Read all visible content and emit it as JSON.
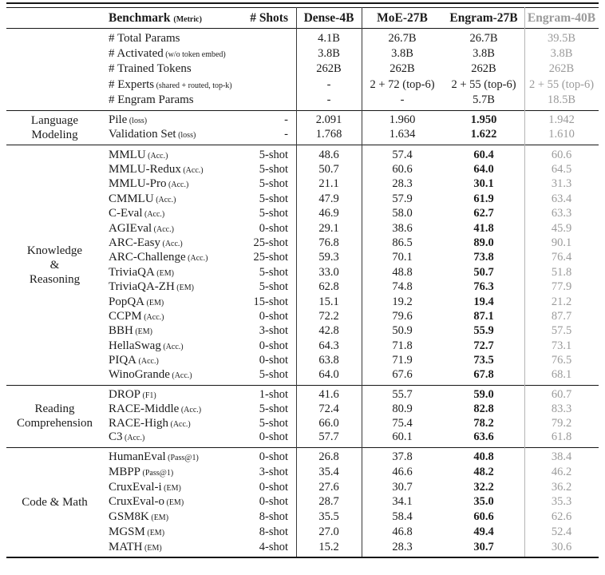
{
  "header": {
    "benchmark": "Benchmark",
    "benchmark_metric": "(Metric)",
    "shots": "# Shots",
    "models": [
      "Dense-4B",
      "MoE-27B",
      "Engram-27B",
      "Engram-40B"
    ]
  },
  "colors": {
    "muted_text": "#9a9a9a",
    "rule": "#161616",
    "light_vline": "#b5b5b5"
  },
  "sections": [
    {
      "group_lines": [],
      "rows": [
        {
          "name": "# Total Params",
          "metric": "",
          "shots": "",
          "values": [
            "4.1B",
            "26.7B",
            "26.7B",
            "39.5B"
          ],
          "bold_col": -1
        },
        {
          "name": "# Activated",
          "metric": "(w/o token embed)",
          "shots": "",
          "values": [
            "3.8B",
            "3.8B",
            "3.8B",
            "3.8B"
          ],
          "bold_col": -1
        },
        {
          "name": "# Trained Tokens",
          "metric": "",
          "shots": "",
          "values": [
            "262B",
            "262B",
            "262B",
            "262B"
          ],
          "bold_col": -1
        },
        {
          "name": "# Experts",
          "metric": "(shared + routed, top-k)",
          "shots": "",
          "values": [
            "-",
            "2 + 72 (top-6)",
            "2 + 55 (top-6)",
            "2 + 55 (top-6)"
          ],
          "bold_col": -1
        },
        {
          "name": "# Engram Params",
          "metric": "",
          "shots": "",
          "values": [
            "-",
            "-",
            "5.7B",
            "18.5B"
          ],
          "bold_col": -1
        }
      ]
    },
    {
      "group_lines": [
        "Language",
        "Modeling"
      ],
      "rows": [
        {
          "name": "Pile",
          "metric": "(loss)",
          "shots": "-",
          "values": [
            "2.091",
            "1.960",
            "1.950",
            "1.942"
          ],
          "bold_col": 2
        },
        {
          "name": "Validation Set",
          "metric": "(loss)",
          "shots": "-",
          "values": [
            "1.768",
            "1.634",
            "1.622",
            "1.610"
          ],
          "bold_col": 2
        }
      ]
    },
    {
      "group_lines": [
        "Knowledge",
        "&",
        "Reasoning"
      ],
      "rows": [
        {
          "name": "MMLU",
          "metric": "(Acc.)",
          "shots": "5-shot",
          "values": [
            "48.6",
            "57.4",
            "60.4",
            "60.6"
          ],
          "bold_col": 2
        },
        {
          "name": "MMLU-Redux",
          "metric": "(Acc.)",
          "shots": "5-shot",
          "values": [
            "50.7",
            "60.6",
            "64.0",
            "64.5"
          ],
          "bold_col": 2
        },
        {
          "name": "MMLU-Pro",
          "metric": "(Acc.)",
          "shots": "5-shot",
          "values": [
            "21.1",
            "28.3",
            "30.1",
            "31.3"
          ],
          "bold_col": 2
        },
        {
          "name": "CMMLU",
          "metric": "(Acc.)",
          "shots": "5-shot",
          "values": [
            "47.9",
            "57.9",
            "61.9",
            "63.4"
          ],
          "bold_col": 2
        },
        {
          "name": "C-Eval",
          "metric": "(Acc.)",
          "shots": "5-shot",
          "values": [
            "46.9",
            "58.0",
            "62.7",
            "63.3"
          ],
          "bold_col": 2
        },
        {
          "name": "AGIEval",
          "metric": "(Acc.)",
          "shots": "0-shot",
          "values": [
            "29.1",
            "38.6",
            "41.8",
            "45.9"
          ],
          "bold_col": 2
        },
        {
          "name": "ARC-Easy",
          "metric": "(Acc.)",
          "shots": "25-shot",
          "values": [
            "76.8",
            "86.5",
            "89.0",
            "90.1"
          ],
          "bold_col": 2
        },
        {
          "name": "ARC-Challenge",
          "metric": "(Acc.)",
          "shots": "25-shot",
          "values": [
            "59.3",
            "70.1",
            "73.8",
            "76.4"
          ],
          "bold_col": 2
        },
        {
          "name": "TriviaQA",
          "metric": "(EM)",
          "shots": "5-shot",
          "values": [
            "33.0",
            "48.8",
            "50.7",
            "51.8"
          ],
          "bold_col": 2
        },
        {
          "name": "TriviaQA-ZH",
          "metric": "(EM)",
          "shots": "5-shot",
          "values": [
            "62.8",
            "74.8",
            "76.3",
            "77.9"
          ],
          "bold_col": 2
        },
        {
          "name": "PopQA",
          "metric": "(EM)",
          "shots": "15-shot",
          "values": [
            "15.1",
            "19.2",
            "19.4",
            "21.2"
          ],
          "bold_col": 2
        },
        {
          "name": "CCPM",
          "metric": "(Acc.)",
          "shots": "0-shot",
          "values": [
            "72.2",
            "79.6",
            "87.1",
            "87.7"
          ],
          "bold_col": 2
        },
        {
          "name": "BBH",
          "metric": "(EM)",
          "shots": "3-shot",
          "values": [
            "42.8",
            "50.9",
            "55.9",
            "57.5"
          ],
          "bold_col": 2
        },
        {
          "name": "HellaSwag",
          "metric": "(Acc.)",
          "shots": "0-shot",
          "values": [
            "64.3",
            "71.8",
            "72.7",
            "73.1"
          ],
          "bold_col": 2
        },
        {
          "name": "PIQA",
          "metric": "(Acc.)",
          "shots": "0-shot",
          "values": [
            "63.8",
            "71.9",
            "73.5",
            "76.5"
          ],
          "bold_col": 2
        },
        {
          "name": "WinoGrande",
          "metric": "(Acc.)",
          "shots": "5-shot",
          "values": [
            "64.0",
            "67.6",
            "67.8",
            "68.1"
          ],
          "bold_col": 2
        }
      ]
    },
    {
      "group_lines": [
        "Reading",
        "Comprehension"
      ],
      "rows": [
        {
          "name": "DROP",
          "metric": "(F1)",
          "shots": "1-shot",
          "values": [
            "41.6",
            "55.7",
            "59.0",
            "60.7"
          ],
          "bold_col": 2
        },
        {
          "name": "RACE-Middle",
          "metric": "(Acc.)",
          "shots": "5-shot",
          "values": [
            "72.4",
            "80.9",
            "82.8",
            "83.3"
          ],
          "bold_col": 2
        },
        {
          "name": "RACE-High",
          "metric": "(Acc.)",
          "shots": "5-shot",
          "values": [
            "66.0",
            "75.4",
            "78.2",
            "79.2"
          ],
          "bold_col": 2
        },
        {
          "name": "C3",
          "metric": "(Acc.)",
          "shots": "0-shot",
          "values": [
            "57.7",
            "60.1",
            "63.6",
            "61.8"
          ],
          "bold_col": 2
        }
      ]
    },
    {
      "group_lines": [
        "Code & Math"
      ],
      "rows": [
        {
          "name": "HumanEval",
          "metric": "(Pass@1)",
          "shots": "0-shot",
          "values": [
            "26.8",
            "37.8",
            "40.8",
            "38.4"
          ],
          "bold_col": 2
        },
        {
          "name": "MBPP",
          "metric": "(Pass@1)",
          "shots": "3-shot",
          "values": [
            "35.4",
            "46.6",
            "48.2",
            "46.2"
          ],
          "bold_col": 2
        },
        {
          "name": "CruxEval-i",
          "metric": "(EM)",
          "shots": "0-shot",
          "values": [
            "27.6",
            "30.7",
            "32.2",
            "36.2"
          ],
          "bold_col": 2
        },
        {
          "name": "CruxEval-o",
          "metric": "(EM)",
          "shots": "0-shot",
          "values": [
            "28.7",
            "34.1",
            "35.0",
            "35.3"
          ],
          "bold_col": 2
        },
        {
          "name": "GSM8K",
          "metric": "(EM)",
          "shots": "8-shot",
          "values": [
            "35.5",
            "58.4",
            "60.6",
            "62.6"
          ],
          "bold_col": 2
        },
        {
          "name": "MGSM",
          "metric": "(EM)",
          "shots": "8-shot",
          "values": [
            "27.0",
            "46.8",
            "49.4",
            "52.4"
          ],
          "bold_col": 2
        },
        {
          "name": "MATH",
          "metric": "(EM)",
          "shots": "4-shot",
          "values": [
            "15.2",
            "28.3",
            "30.7",
            "30.6"
          ],
          "bold_col": 2
        }
      ]
    }
  ]
}
